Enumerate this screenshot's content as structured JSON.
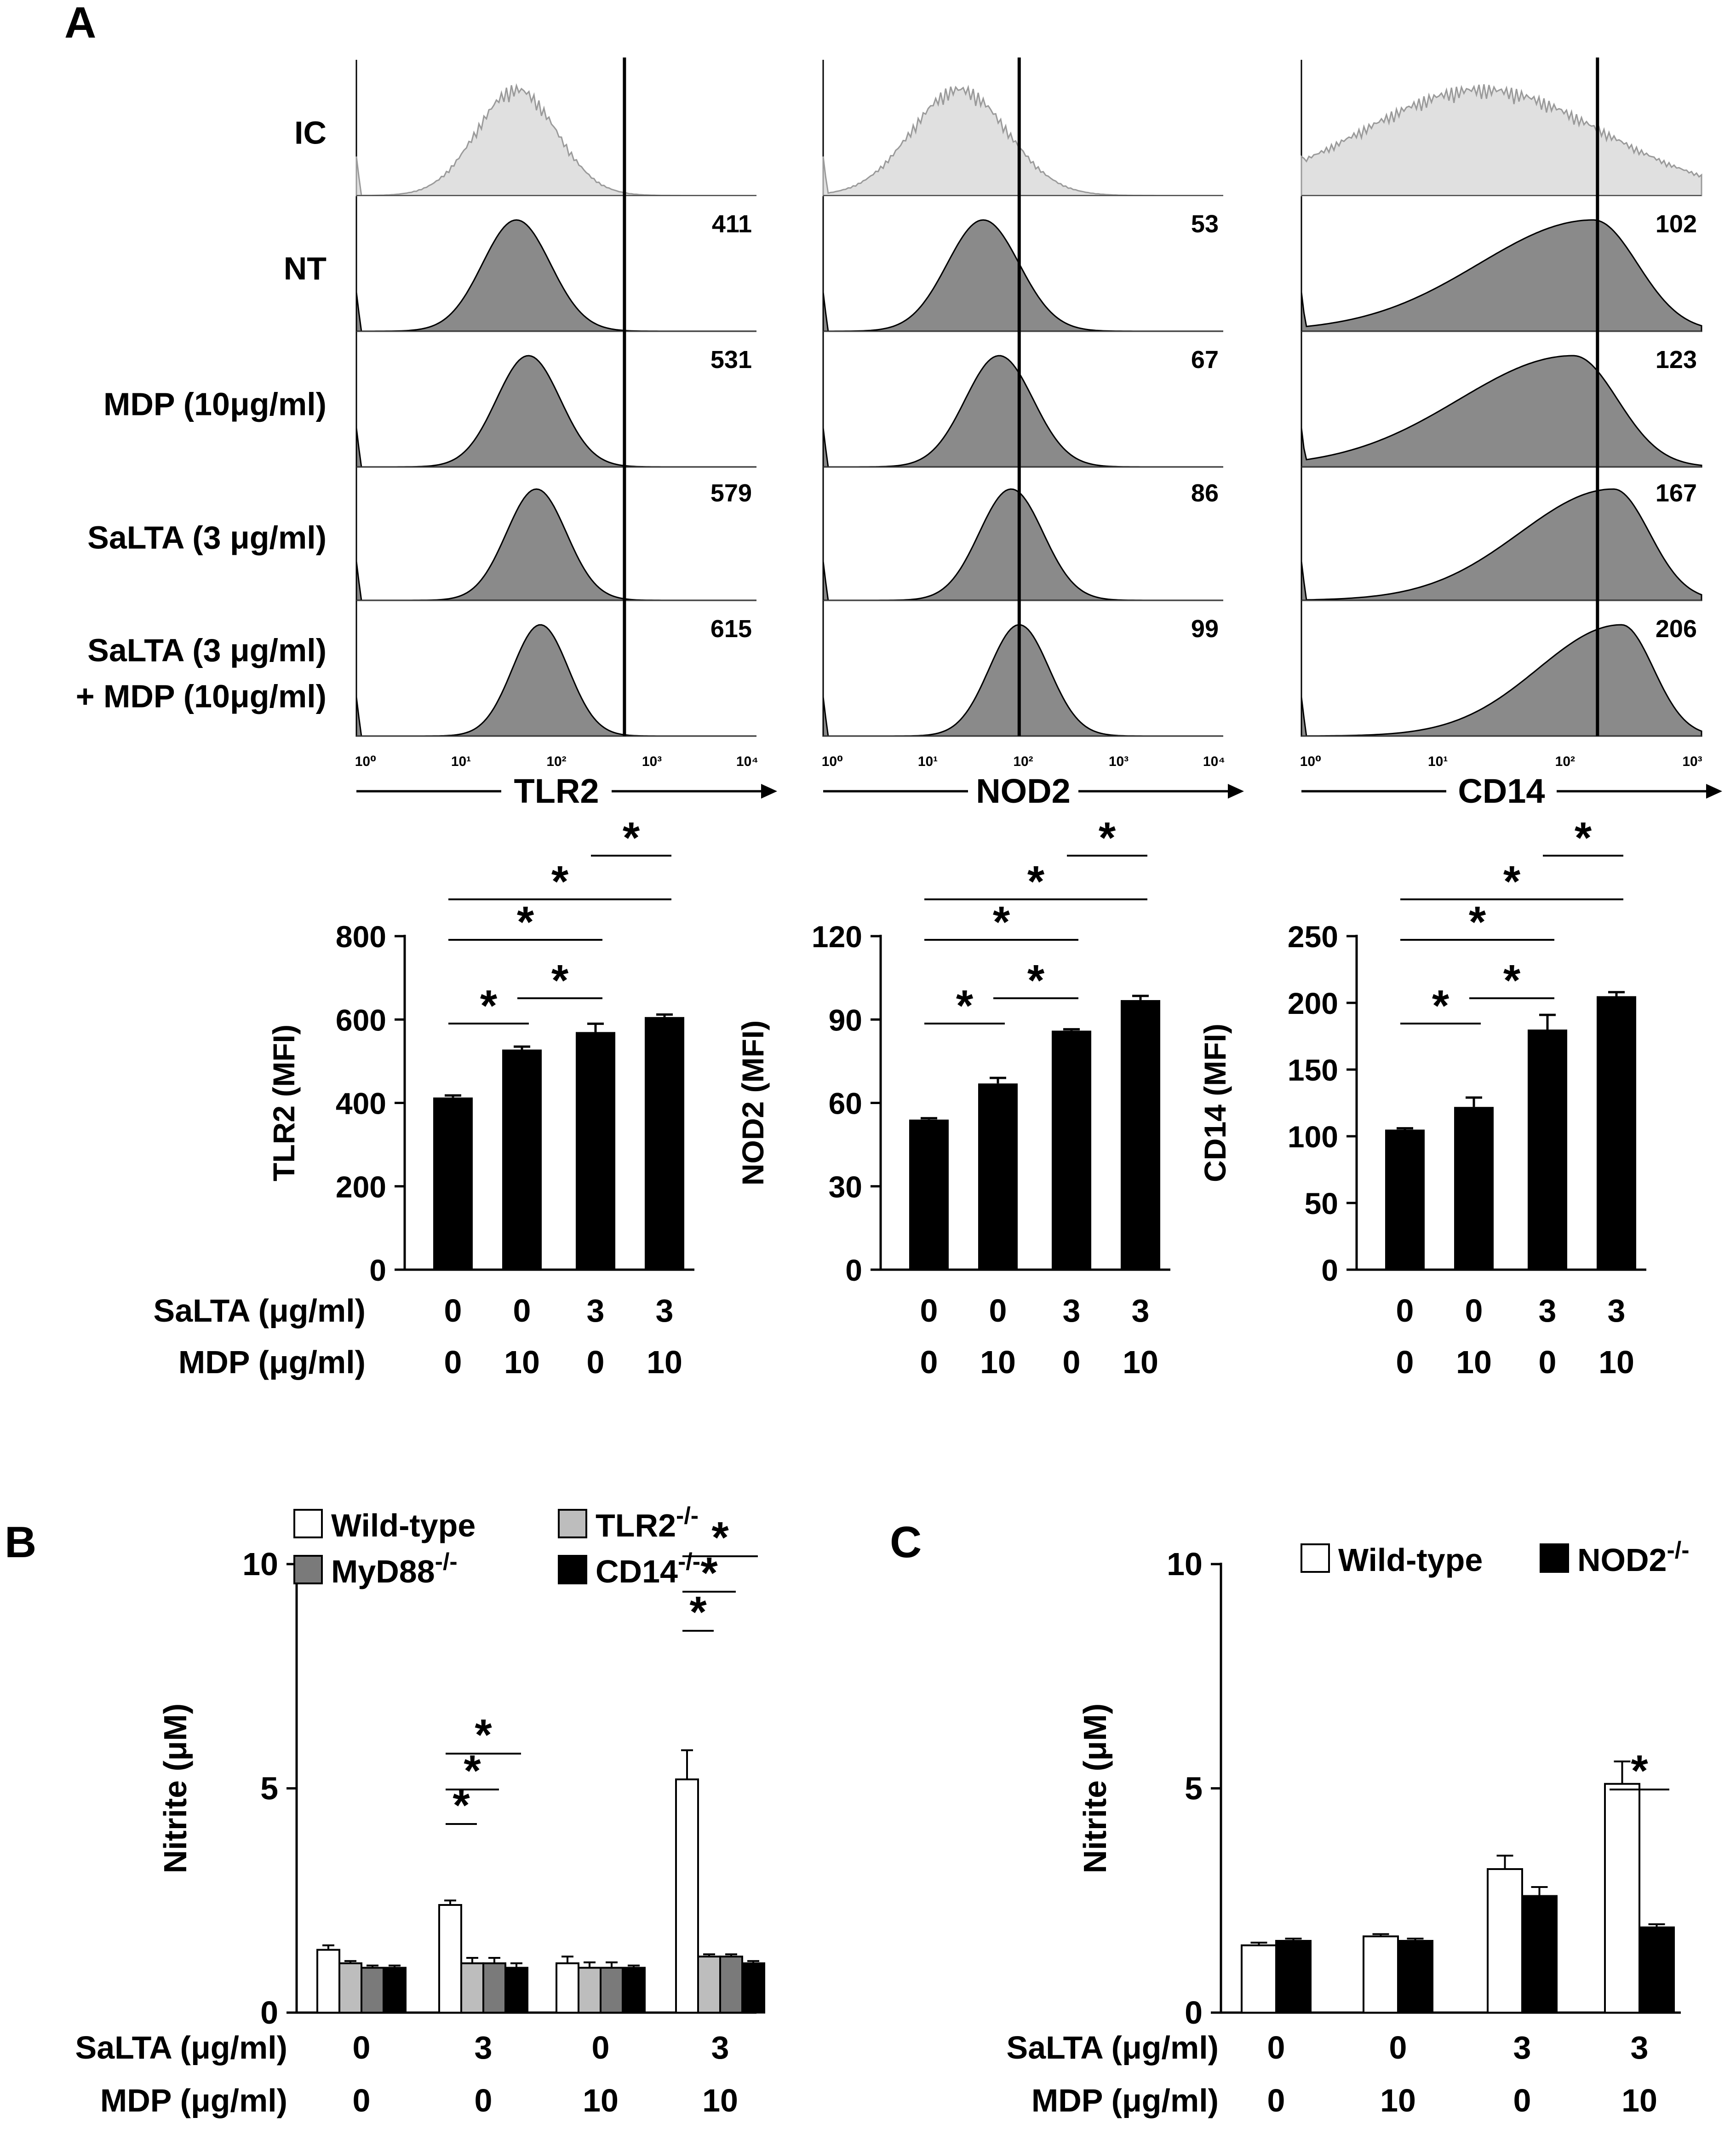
{
  "panels": {
    "a": "A",
    "b": "B",
    "c": "C"
  },
  "flow": {
    "row_labels": [
      [
        "IC"
      ],
      [
        "NT"
      ],
      [
        "MDP (10μg/ml)"
      ],
      [
        "SaLTA (3 μg/ml)"
      ],
      [
        "SaLTA (3 μg/ml)",
        "+ MDP (10μg/ml)"
      ]
    ],
    "columns": [
      {
        "axis": "TLR2",
        "mfi": [
          "411",
          "531",
          "579",
          "615"
        ],
        "ticks": [
          "10⁰",
          "10¹",
          "10²",
          "10³",
          "10⁴"
        ]
      },
      {
        "axis": "NOD2",
        "mfi": [
          "53",
          "67",
          "86",
          "99"
        ],
        "ticks": [
          "10⁰",
          "10¹",
          "10²",
          "10³",
          "10⁴"
        ]
      },
      {
        "axis": "CD14",
        "mfi": [
          "102",
          "123",
          "167",
          "206"
        ],
        "ticks": [
          "10⁰",
          "10¹",
          "10²",
          "10³"
        ]
      }
    ]
  },
  "chart_data": [
    {
      "id": "A-TLR2",
      "type": "bar",
      "ylabel": "TLR2 (MFI)",
      "ylim": [
        0,
        800
      ],
      "yticks": [
        "0",
        "200",
        "400",
        "600",
        "800"
      ],
      "values": [
        413,
        528,
        570,
        606
      ],
      "errors": [
        5,
        7,
        20,
        6
      ],
      "saLTA": [
        "0",
        "0",
        "3",
        "3"
      ],
      "mdp": [
        "0",
        "10",
        "0",
        "10"
      ],
      "sig": [
        {
          "a": 0,
          "b": 1,
          "label": "*"
        },
        {
          "a": 1,
          "b": 2,
          "label": "*"
        },
        {
          "a": 0,
          "b": 2,
          "label": "*"
        },
        {
          "a": 0,
          "b": 3,
          "label": "*"
        },
        {
          "a": 2,
          "b": 3,
          "label": "*"
        }
      ]
    },
    {
      "id": "A-NOD2",
      "type": "bar",
      "ylabel": "NOD2 (MFI)",
      "ylim": [
        0,
        120
      ],
      "yticks": [
        "0",
        "30",
        "60",
        "90",
        "120"
      ],
      "values": [
        54,
        67,
        86,
        97
      ],
      "errors": [
        0.5,
        2,
        0.5,
        1.5
      ],
      "saLTA": [
        "0",
        "0",
        "3",
        "3"
      ],
      "mdp": [
        "0",
        "10",
        "0",
        "10"
      ],
      "sig": [
        {
          "a": 0,
          "b": 1,
          "label": "*"
        },
        {
          "a": 1,
          "b": 2,
          "label": "*"
        },
        {
          "a": 0,
          "b": 2,
          "label": "*"
        },
        {
          "a": 0,
          "b": 3,
          "label": "*"
        },
        {
          "a": 2,
          "b": 3,
          "label": "*"
        }
      ]
    },
    {
      "id": "A-CD14",
      "type": "bar",
      "ylabel": "CD14 (MFI)",
      "ylim": [
        0,
        250
      ],
      "yticks": [
        "0",
        "50",
        "100",
        "150",
        "200",
        "250"
      ],
      "values": [
        105,
        122,
        180,
        205
      ],
      "errors": [
        1,
        7,
        11,
        3
      ],
      "saLTA": [
        "0",
        "0",
        "3",
        "3"
      ],
      "mdp": [
        "0",
        "10",
        "0",
        "10"
      ],
      "sig": [
        {
          "a": 0,
          "b": 1,
          "label": "*"
        },
        {
          "a": 1,
          "b": 2,
          "label": "*"
        },
        {
          "a": 0,
          "b": 2,
          "label": "*"
        },
        {
          "a": 0,
          "b": 3,
          "label": "*"
        },
        {
          "a": 2,
          "b": 3,
          "label": "*"
        }
      ]
    },
    {
      "id": "B",
      "type": "bar",
      "ylabel": "Nitrite (μM)",
      "ylim": [
        0,
        10
      ],
      "yticks": [
        "0",
        "5",
        "10"
      ],
      "categories_saLTA": [
        "0",
        "3",
        "0",
        "3"
      ],
      "categories_mdp": [
        "0",
        "0",
        "10",
        "10"
      ],
      "series": [
        {
          "name": "Wild-type",
          "sup": "",
          "color": "#ffffff",
          "values": [
            1.4,
            2.4,
            1.1,
            5.2
          ],
          "errors": [
            0.1,
            0.1,
            0.15,
            0.65
          ]
        },
        {
          "name": "TLR2",
          "sup": "-/-",
          "color": "#bdbdbd",
          "values": [
            1.1,
            1.1,
            1.0,
            1.25
          ],
          "errors": [
            0.05,
            0.12,
            0.12,
            0.05
          ]
        },
        {
          "name": "MyD88",
          "sup": "-/-",
          "color": "#7a7a7a",
          "values": [
            1.0,
            1.1,
            1.0,
            1.25
          ],
          "errors": [
            0.05,
            0.12,
            0.12,
            0.05
          ]
        },
        {
          "name": "CD14",
          "sup": "-/-",
          "color": "#000000",
          "values": [
            1.0,
            1.0,
            1.0,
            1.1
          ],
          "errors": [
            0.05,
            0.1,
            0.05,
            0.05
          ]
        }
      ],
      "sig": [
        {
          "group": 1,
          "a": 0,
          "b": 1,
          "label": "*"
        },
        {
          "group": 1,
          "a": 0,
          "b": 2,
          "label": "*"
        },
        {
          "group": 1,
          "a": 0,
          "b": 3,
          "label": "*"
        },
        {
          "group": 3,
          "a": 0,
          "b": 1,
          "label": "*"
        },
        {
          "group": 3,
          "a": 0,
          "b": 2,
          "label": "*"
        },
        {
          "group": 3,
          "a": 0,
          "b": 3,
          "label": "*"
        }
      ]
    },
    {
      "id": "C",
      "type": "bar",
      "ylabel": "Nitrite (μM)",
      "ylim": [
        0,
        10
      ],
      "yticks": [
        "0",
        "5",
        "10"
      ],
      "categories_saLTA": [
        "0",
        "0",
        "3",
        "3"
      ],
      "categories_mdp": [
        "0",
        "10",
        "0",
        "10"
      ],
      "series": [
        {
          "name": "Wild-type",
          "sup": "",
          "color": "#ffffff",
          "values": [
            1.5,
            1.7,
            3.2,
            5.1
          ],
          "errors": [
            0.06,
            0.05,
            0.3,
            0.5
          ]
        },
        {
          "name": "NOD2",
          "sup": "-/-",
          "color": "#000000",
          "values": [
            1.6,
            1.6,
            2.6,
            1.9
          ],
          "errors": [
            0.05,
            0.05,
            0.2,
            0.07
          ]
        }
      ],
      "sig": [
        {
          "group": 3,
          "a": 0,
          "b": 1,
          "label": "*"
        }
      ]
    }
  ],
  "row_labels": {
    "saLTA": "SaLTA (μg/ml)",
    "mdp": "MDP (μg/ml)"
  }
}
